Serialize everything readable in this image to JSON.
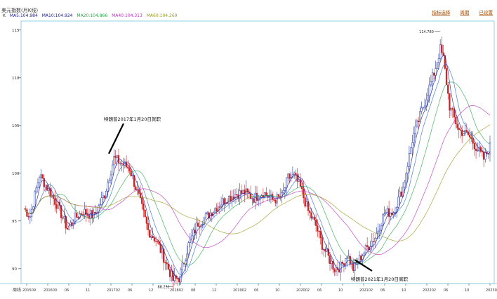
{
  "header": {
    "title": "美元指数(月K线)",
    "links": [
      "指标选择",
      "周期",
      "已设置"
    ]
  },
  "ma_legend": {
    "prefix": "K",
    "items": [
      {
        "label": "MA5:104.984",
        "color": "#1a1a8a"
      },
      {
        "label": "MA10:104.924",
        "color": "#1a1a8a"
      },
      {
        "label": "MA20:104.866",
        "color": "#2aa84a"
      },
      {
        "label": "MA40:104.313",
        "color": "#c030c0"
      },
      {
        "label": "MA60:104.260",
        "color": "#9a9a20"
      }
    ]
  },
  "chart_data": {
    "type": "candlestick",
    "y_ticks": [
      {
        "value": 90,
        "label": "90"
      },
      {
        "value": 95,
        "label": "95"
      },
      {
        "value": 100,
        "label": "100"
      },
      {
        "value": 105,
        "label": "105"
      },
      {
        "value": 110,
        "label": "110"
      },
      {
        "value": 115,
        "label": "115"
      }
    ],
    "y_range": [
      88,
      115.5
    ],
    "x_axis_label": "周线",
    "x_ticks": [
      "201509",
      "201600",
      "06",
      "11",
      "201702",
      "06",
      "12",
      "201802",
      "08",
      "12",
      "201902",
      "06",
      "10",
      "202002",
      "06",
      "10",
      "202102",
      "06",
      "10",
      "202202",
      "06",
      "10",
      "202302"
    ],
    "key_points": [
      {
        "label": "88.251",
        "value": 88.251
      },
      {
        "label": "114.780",
        "value": 114.78
      }
    ],
    "annotations": [
      {
        "text": "特朗普2017年1月20日就职"
      },
      {
        "text": "特朗普2021年1月20日离职"
      }
    ],
    "ma_colors": {
      "ma5": "#1a1a8a",
      "ma10": "#2a6ad0",
      "ma20": "#2aa84a",
      "ma40": "#c030c0",
      "ma60": "#9a9a20"
    },
    "up_color": "#2a3fa8",
    "down_color": "#cc2222",
    "anchor_path": [
      [
        0,
        96.3
      ],
      [
        4,
        95.5
      ],
      [
        10,
        99.8
      ],
      [
        15,
        98.5
      ],
      [
        22,
        96.5
      ],
      [
        28,
        94.2
      ],
      [
        33,
        95.3
      ],
      [
        38,
        96.0
      ],
      [
        45,
        95.5
      ],
      [
        52,
        97.8
      ],
      [
        58,
        101.6
      ],
      [
        63,
        101.0
      ],
      [
        68,
        100.5
      ],
      [
        74,
        97.5
      ],
      [
        80,
        94.0
      ],
      [
        85,
        93.0
      ],
      [
        90,
        91.2
      ],
      [
        96,
        88.8
      ],
      [
        100,
        89.0
      ],
      [
        106,
        92.5
      ],
      [
        112,
        94.8
      ],
      [
        118,
        95.5
      ],
      [
        124,
        96.5
      ],
      [
        130,
        97.3
      ],
      [
        136,
        97.8
      ],
      [
        142,
        98.0
      ],
      [
        148,
        97.4
      ],
      [
        154,
        98.0
      ],
      [
        160,
        97.2
      ],
      [
        166,
        97.5
      ],
      [
        170,
        99.5
      ],
      [
        174,
        99.7
      ],
      [
        178,
        98.5
      ],
      [
        183,
        96.0
      ],
      [
        188,
        94.5
      ],
      [
        192,
        92.5
      ],
      [
        196,
        91.2
      ],
      [
        200,
        90.0
      ],
      [
        204,
        90.2
      ],
      [
        208,
        91.5
      ],
      [
        212,
        90.0
      ],
      [
        216,
        91.0
      ],
      [
        220,
        92.0
      ],
      [
        226,
        93.3
      ],
      [
        232,
        95.8
      ],
      [
        238,
        96.0
      ],
      [
        244,
        98.5
      ],
      [
        250,
        103.5
      ],
      [
        256,
        106.5
      ],
      [
        260,
        108.5
      ],
      [
        264,
        110.5
      ],
      [
        268,
        113.0
      ],
      [
        270,
        112.0
      ],
      [
        274,
        107.0
      ],
      [
        280,
        104.5
      ],
      [
        286,
        104.0
      ],
      [
        290,
        103.0
      ],
      [
        296,
        101.5
      ],
      [
        300,
        102.8
      ]
    ]
  }
}
